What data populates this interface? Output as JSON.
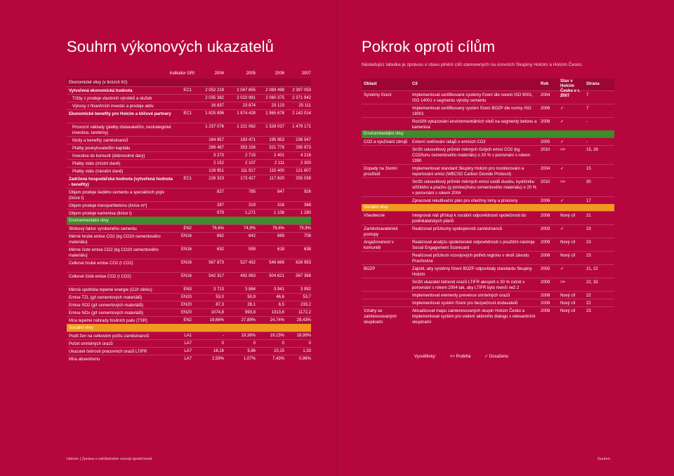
{
  "left": {
    "title": "Souhrn výkonových ukazatelů",
    "header": {
      "gri": "Indikátor GRI",
      "y1": "2004",
      "y2": "2005",
      "y3": "2006",
      "y4": "2007"
    },
    "rows": [
      {
        "k": "sec",
        "label": "Ekonomické vlivy (v tisících Kč)",
        "gri": "",
        "v": [
          "",
          "",
          "",
          ""
        ]
      },
      {
        "k": "bold",
        "label": "Vytvořená ekonomická hodnota",
        "gri": "EC1",
        "v": [
          "2 052 219",
          "2 047 855",
          "2 083 498",
          "2 397 053"
        ]
      },
      {
        "k": "ind",
        "label": "Tržby z prodeje vlastních výrobků a služeb",
        "gri": "",
        "v": [
          "2 035 382",
          "2 023 981",
          "2 060 375",
          "2 371 942"
        ]
      },
      {
        "k": "ind",
        "label": "Výnosy z finančních investic a prodeje aktiv",
        "gri": "",
        "v": [
          "16 837",
          "23 874",
          "23 123",
          "25 111"
        ]
      },
      {
        "k": "bold",
        "label": "Ekonomické benefity pro Holcim a klíčové partnery",
        "gri": "EC1",
        "v": [
          "1 825 896",
          "1 874 428",
          "1 965 678",
          "2 142 014"
        ],
        "h": 19
      },
      {
        "k": "ind",
        "label": "Provozní náklady (platby dodavatelům, nestrategické investice, tantiémy)",
        "gri": "",
        "v": [
          "1 237 076",
          "1 221 062",
          "1 328 037",
          "1 479 171"
        ],
        "h": 19
      },
      {
        "k": "ind",
        "label": "Mzdy a benefity zaměstnanců",
        "gri": "",
        "v": [
          "164 957",
          "183 471",
          "195 953",
          "238 547"
        ]
      },
      {
        "k": "ind",
        "label": "Platby poskytovatelům kapitálu",
        "gri": "",
        "v": [
          "289 487",
          "353 156",
          "321 776",
          "295 973"
        ]
      },
      {
        "k": "ind",
        "label": "Investice do komunit (dobrovolné dary)",
        "gri": "",
        "v": [
          "3 273",
          "2 715",
          "2 401",
          "4 216"
        ]
      },
      {
        "k": "ind",
        "label": "Platby státu (místní daně)",
        "gri": "",
        "v": [
          "2 152",
          "2 107",
          "2 111",
          "2 300"
        ]
      },
      {
        "k": "ind",
        "label": "Platby státu (národní daně)",
        "gri": "",
        "v": [
          "128 951",
          "111 917",
          "115 400",
          "121 807"
        ]
      },
      {
        "k": "bold",
        "label": "Zadržená hospodářská hodnota (vytvořená hodnota - benefity)",
        "gri": "EC1",
        "v": [
          "226 323",
          "173 427",
          "117 820",
          "255 039"
        ],
        "h": 19
      },
      {
        "k": "",
        "label": "Objem prodeje šedého cementu a speciálních pojiv (tisíce t)",
        "gri": "",
        "v": [
          "827",
          "785",
          "847",
          "926"
        ],
        "h": 19
      },
      {
        "k": "",
        "label": "Objem prodeje transportbetonu (tisíce m³)",
        "gri": "",
        "v": [
          "287",
          "319",
          "316",
          "368"
        ]
      },
      {
        "k": "",
        "label": "Objem prodeje kameniva (tisíce t)",
        "gri": "",
        "v": [
          "979",
          "1,271",
          "1 108",
          "1 280"
        ]
      },
      {
        "k": "env",
        "label": "Environmentální vlivy",
        "gri": "",
        "v": [
          "",
          "",
          "",
          ""
        ]
      },
      {
        "k": "",
        "label": "Slinkový faktor vyrobeného cementu",
        "gri": "EN2",
        "v": [
          "76,6%",
          "74,9%",
          "76,6%",
          "75,9%"
        ]
      },
      {
        "k": "",
        "label": "Měrné hrubé emise CO2 (kg CO2/t cementového materiálu)",
        "gri": "EN16",
        "v": [
          "662",
          "642",
          "669",
          "708"
        ],
        "h": 19
      },
      {
        "k": "",
        "label": "Měrné čisté emise CO2 (kg CO2/t cementového materiálu)",
        "gri": "EN16",
        "v": [
          "632",
          "599",
          "618",
          "638"
        ],
        "h": 19
      },
      {
        "k": "",
        "label": "Celkové hrubé emise CO2 (t CO2)",
        "gri": "EN16",
        "v": [
          "567 873",
          "527 432",
          "546 666",
          "628 953"
        ],
        "h": 19
      },
      {
        "k": "",
        "label": "Celkové čisté emise CO2 (t CO2)",
        "gri": "EN16",
        "v": [
          "542 317",
          "492 063",
          "504 621",
          "567 368"
        ],
        "h": 19
      },
      {
        "k": "",
        "label": "Měrná spotřeba tepelné energie (GJ/t slinku)",
        "gri": "EN3",
        "v": [
          "3 713",
          "3 884",
          "3 941",
          "3 992"
        ]
      },
      {
        "k": "",
        "label": "Emise TZL (g/t cementových materiálů)",
        "gri": "EN20",
        "v": [
          "53,0",
          "50,9",
          "46,6",
          "53,7"
        ]
      },
      {
        "k": "",
        "label": "Emise SO2 (g/t cementových materiálů)",
        "gri": "EN20",
        "v": [
          "87,3",
          "28,1",
          "6,5",
          "233,2"
        ]
      },
      {
        "k": "",
        "label": "Emise NOx (g/t cementových materiálů)",
        "gri": "EN20",
        "v": [
          "1074,8",
          "993,8",
          "1313,6",
          "1172,2"
        ]
      },
      {
        "k": "",
        "label": "Míra tepelné náhrady fosilních paliv (TSR)",
        "gri": "EN2",
        "v": [
          "19,66%",
          "27,89%",
          "24,74%",
          "29,43%"
        ]
      },
      {
        "k": "soc",
        "label": "Sociální vlivy",
        "gri": "",
        "v": [
          "",
          "",
          "",
          ""
        ]
      },
      {
        "k": "",
        "label": "Podíl žen na celkovém počtu zaměstnanců",
        "gri": "LA1",
        "v": [
          "-",
          "19,38%",
          "19,15%",
          "18,99%"
        ]
      },
      {
        "k": "",
        "label": "Počet smrtelných úrazů",
        "gri": "LA7",
        "v": [
          "0",
          "0",
          "0",
          "0"
        ]
      },
      {
        "k": "",
        "label": "Ukazatel četnosti pracovních úrazů LTIFR",
        "gri": "LA7",
        "v": [
          "18,16",
          "5,86",
          "10,15",
          "1,33"
        ]
      },
      {
        "k": "",
        "label": "Míra absentismu",
        "gri": "LA7",
        "v": [
          "2,59%",
          "1,07%",
          "7,43%",
          "0,96%"
        ]
      }
    ],
    "footer": "Holcim | Zpráva o udržitelném rozvoji společnosti"
  },
  "right": {
    "title": "Pokrok oproti cílům",
    "subtitle": "Následující tabulka je zprávou o stavu plnění cílů stanovených na úrovních Skupiny Holcim a Holcim Česko.",
    "header": {
      "area": "Oblast",
      "goal": "Cíl",
      "year": "Rok",
      "status": "Stav v Holcim Česko v r. 2007",
      "page": "Strana"
    },
    "rows": [
      {
        "a": "Systémy řízení",
        "g": "Implementovat certifikované systémy řízení dle norem ISO 9001, ISO 14001 v segmentu výroby cementu",
        "y": "2004",
        "s": "✓",
        "p": "7",
        "h": 19
      },
      {
        "a": "",
        "g": "Implementovat certifikovaný systém řízení BOZP dle normy ISO 18001",
        "y": "2006",
        "s": "✓",
        "p": "7",
        "h": 19
      },
      {
        "a": "",
        "g": "Rozšířit vykazování environmentálních vlivů na segmenty betonu a kameniva",
        "y": "2006",
        "s": "✓",
        "p": "-",
        "h": 19
      },
      {
        "band": "env",
        "label": "Environmentální vlivy"
      },
      {
        "a": "CO2 a využívání zdrojů",
        "g": "Externí ověřování údajů o emisích CO2",
        "y": "2005",
        "s": "✓",
        "p": "-",
        "h": 11
      },
      {
        "a": "",
        "g": "Snížit celosvětový průměr měrných čistých emisí CO2 (kg CO2/tunu cementového materiálu) o 20 % v porovnání s rokem 1990",
        "y": "2010",
        "s": ">>",
        "p": "15, 28",
        "h": 27
      },
      {
        "a": "Dopady na životní prostředí",
        "g": "Implementovat standard Skupiny Holcim pro monitorování a reportování emisí (WBCSD Carbon Dioxide Protocol)",
        "y": "2004",
        "s": "✓",
        "p": "15",
        "h": 19
      },
      {
        "a": "",
        "g": "Snížit celosvětový průměr měrných emisí oxidů dusíku, kysličníku siřičitého a prachu (g (emise)/tunu cementového materiálu) o 20 % v porovnání s rokem 2004",
        "y": "2010",
        "s": ">>",
        "p": "30",
        "h": 27
      },
      {
        "a": "",
        "g": "Zpracovat rekultivační plán pro všechny lomy a pískovny",
        "y": "2006",
        "s": "✓",
        "p": "17",
        "h": 11
      },
      {
        "band": "soc",
        "label": "Sociální vlivy"
      },
      {
        "a": "Všeobecné",
        "g": "Integrovat náš přístup k sociální odpovědnosti společnosti do podnikatelských plánů",
        "y": "2008",
        "s": "Nový cíl",
        "p": "21",
        "h": 19
      },
      {
        "a": "Zaměstnavatelské postupy",
        "g": "Realizovat průzkumy spokojenosti zaměstnanců",
        "y": "2003",
        "s": "✓",
        "p": "23",
        "h": 19
      },
      {
        "a": "Angažovanost v komunitě",
        "g": "Realizovat analýzu společenské odpovědnosti s použitím nástroje Social Engagement Scorecard",
        "y": "2009",
        "s": "Nový cíl",
        "p": "23",
        "h": 19
      },
      {
        "a": "",
        "g": "Realizovat průzkum rozvojových potřeb regionu v okolí závodu Prachovice",
        "y": "2008",
        "s": "Nový cíl",
        "p": "23",
        "h": 19
      },
      {
        "a": "BOZP",
        "g": "Zajistit, aby systémy řízení BOZP odpovídaly standardu Skupiny Holcim",
        "y": "2005",
        "s": "✓",
        "p": "21, 22",
        "h": 19
      },
      {
        "a": "",
        "g": "Snížit ukazatel četnosti úrazů LTIFR alespoň o 30 % ročně v porovnání s rokem 2004 tak, aby LTIFR bylo menší než 2",
        "y": "2009",
        "s": ">>",
        "p": "22, 33",
        "h": 19
      },
      {
        "a": "",
        "g": "Implementovat elementy prevence smrtelných úrazů",
        "y": "2008",
        "s": "Nový cíl",
        "p": "22",
        "h": 11
      },
      {
        "a": "",
        "g": "Implementovat systém řízení pro bezpečnost dodavatelů",
        "y": "2008",
        "s": "Nový cíl",
        "p": "22",
        "h": 11
      },
      {
        "a": "Vztahy se zainteresovanými skupinami",
        "g": "Aktualizovat mapu zainteresovaných skupin Holcim Česko a implementovat systém pro vedení aktivního dialogu s relevantními skupinami",
        "y": "2008",
        "s": "Nový cíl",
        "p": "23",
        "h": 27
      }
    ],
    "legend": {
      "label": "Vysvětlivky:",
      "progress": ">> Probíhá",
      "done": "✓ Dosaženo"
    },
    "footer": "Souhrn"
  }
}
